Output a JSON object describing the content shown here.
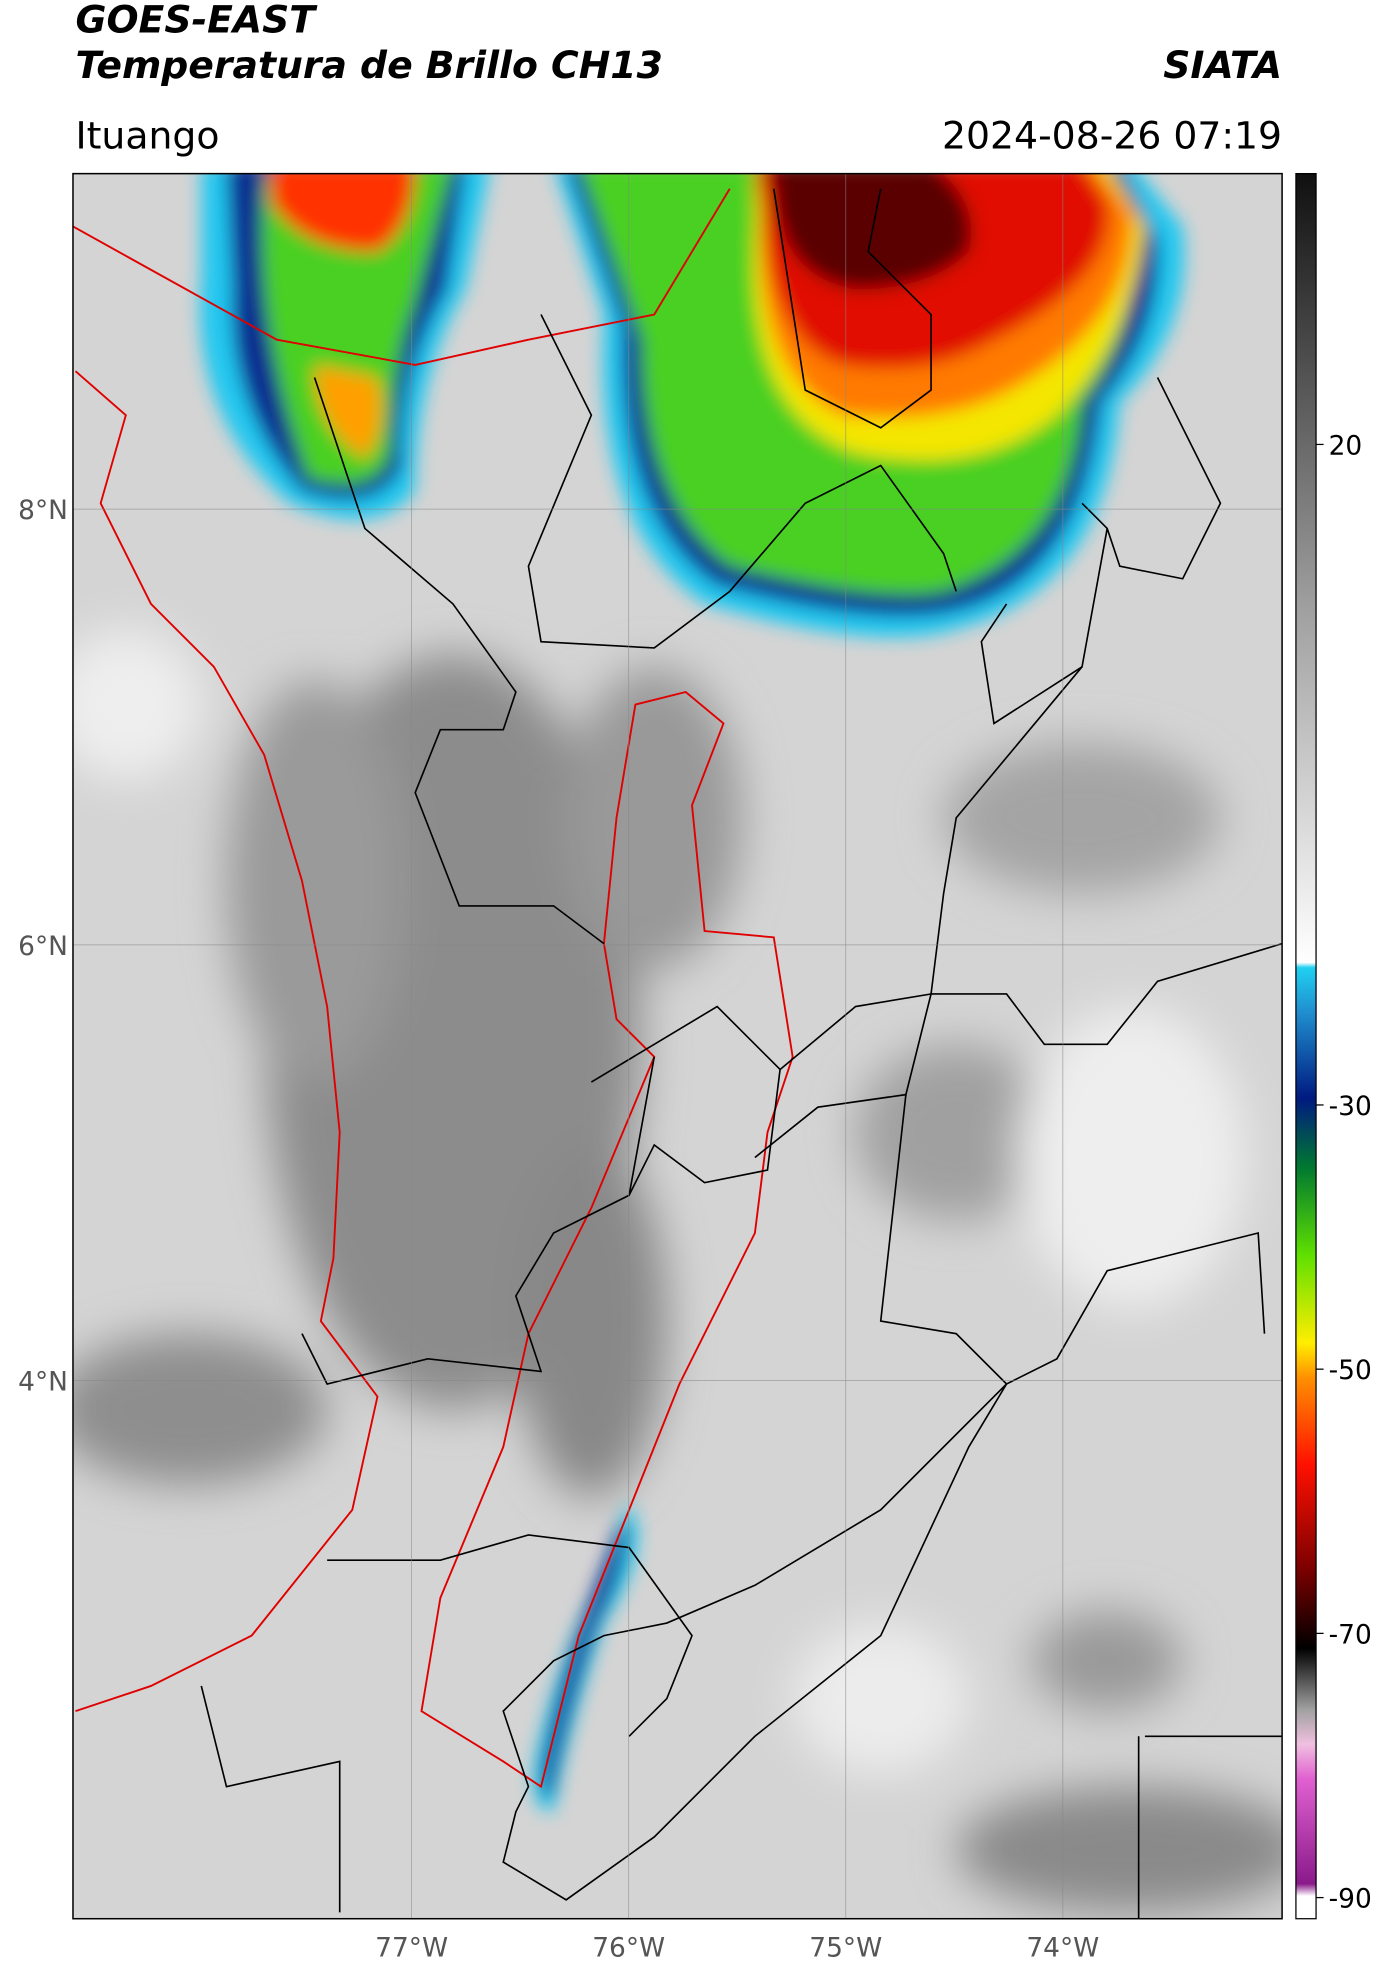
{
  "header": {
    "title": "GOES-EAST",
    "subtitle": "Temperatura de Brillo CH13",
    "source": "SIATA",
    "location": "Ituango",
    "datetime": "2024-08-26 07:19"
  },
  "map": {
    "lat_lim": [
      1.53,
      9.54
    ],
    "lon_lim": [
      -78.56,
      -72.99
    ],
    "grid": true,
    "lat_ticks": [
      {
        "value": 8,
        "label": "8°N"
      },
      {
        "value": 6,
        "label": "6°N"
      },
      {
        "value": 4,
        "label": "4°N"
      }
    ],
    "lon_ticks": [
      {
        "value": -77,
        "label": "77°W"
      },
      {
        "value": -76,
        "label": "76°W"
      },
      {
        "value": -75,
        "label": "75°W"
      },
      {
        "value": -74,
        "label": "74°W"
      }
    ]
  },
  "colorbar": {
    "lim": [
      -91.6,
      40.5
    ],
    "ticks": [
      20,
      -30,
      -50,
      -70,
      -90
    ]
  }
}
